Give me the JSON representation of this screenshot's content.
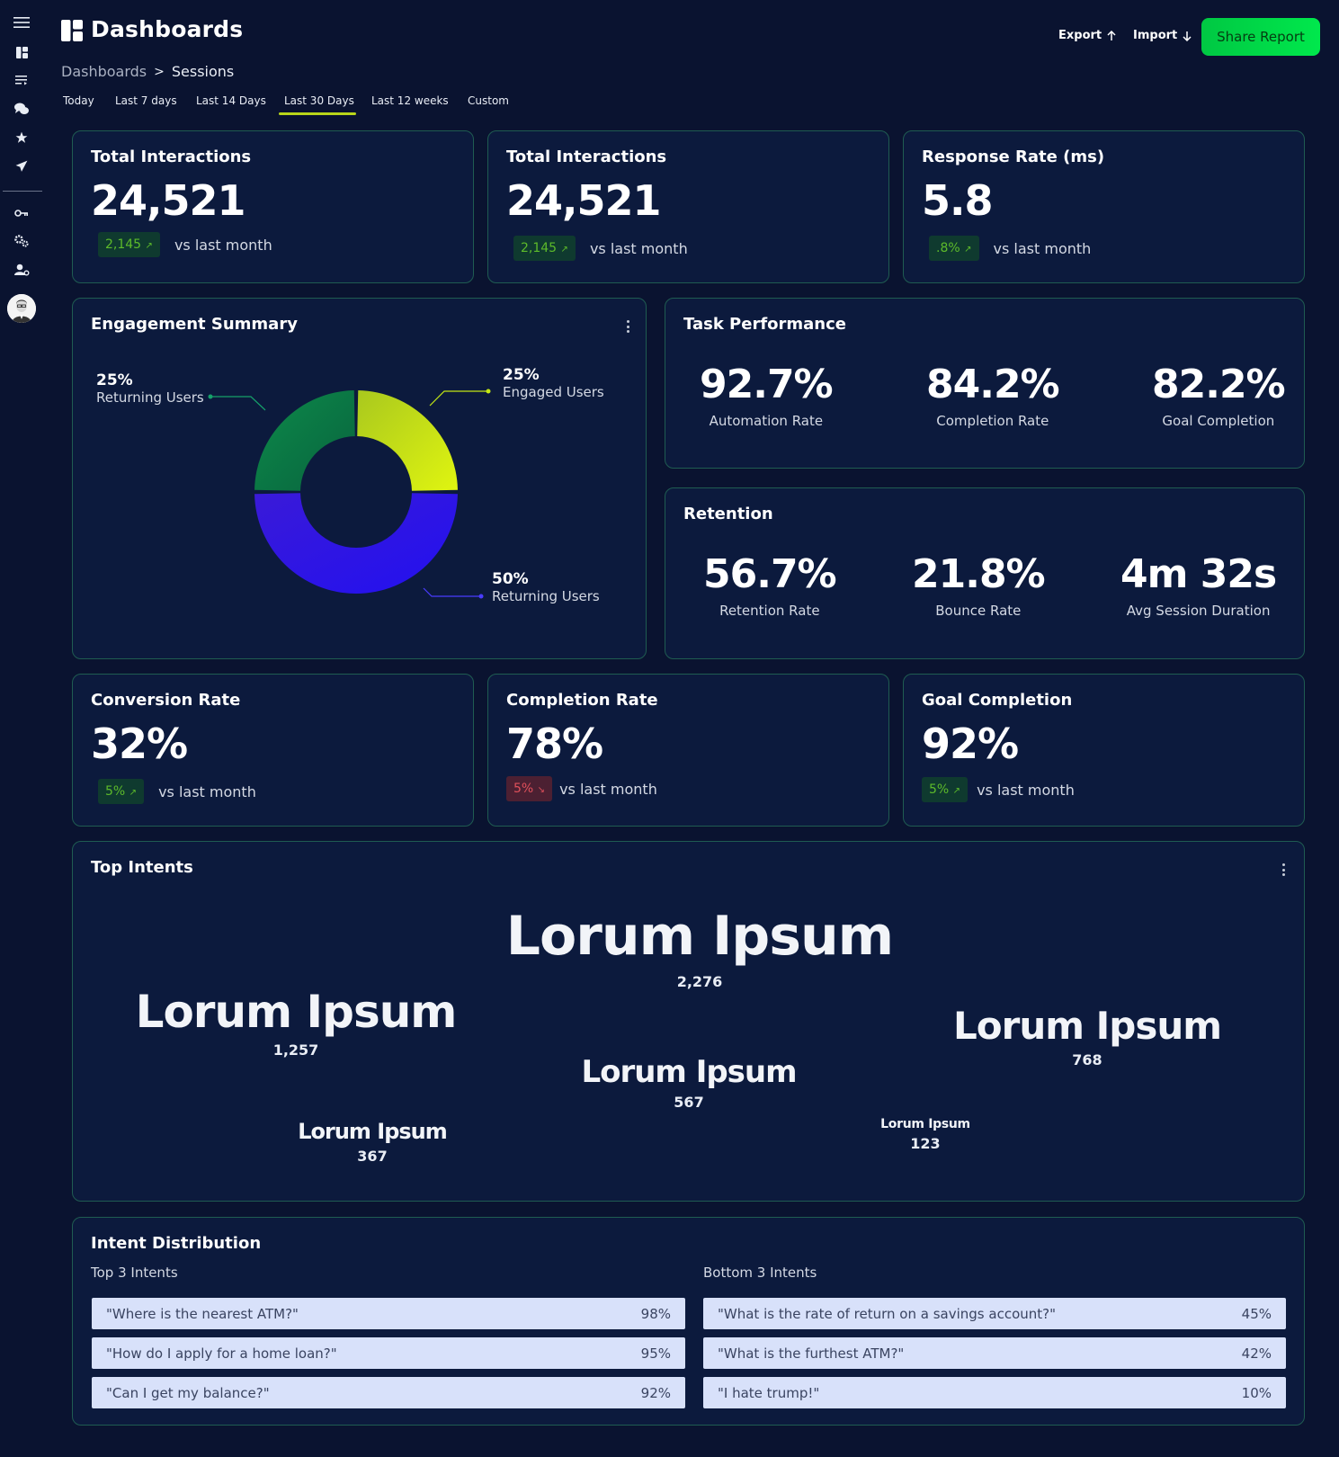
{
  "header": {
    "title": "Dashboards",
    "breadcrumb": [
      "Dashboards",
      "Sessions"
    ],
    "breadcrumb_sep": ">",
    "export_label": "Export",
    "import_label": "Import",
    "share_label": "Share Report"
  },
  "tabs": [
    "Today",
    "Last 7 days",
    "Last 14 Days",
    "Last 30 Days",
    "Last 12 weeks",
    "Custom"
  ],
  "active_tab": "Last 30 Days",
  "kpis_top": [
    {
      "title": "Total Interactions",
      "value": "24,521",
      "delta": "2,145",
      "trend": "up",
      "caption": "vs last month"
    },
    {
      "title": "Total Interactions",
      "value": "24,521",
      "delta": "2,145",
      "trend": "up",
      "caption": "vs last month"
    },
    {
      "title": "Response Rate (ms)",
      "value": "5.8",
      "delta": ".8%",
      "trend": "up",
      "caption": "vs last month"
    }
  ],
  "engagement": {
    "title": "Engagement Summary",
    "slices": [
      {
        "pct": "25%",
        "label": "Returning Users",
        "value": 25,
        "color": "#0b7a45"
      },
      {
        "pct": "25%",
        "label": "Engaged Users",
        "value": 25,
        "color": "#c4e814"
      },
      {
        "pct": "50%",
        "label": "Returning Users",
        "value": 50,
        "color": "#2a10e0"
      }
    ]
  },
  "task_performance": {
    "title": "Task Performance",
    "metrics": [
      {
        "value": "92.7%",
        "label": "Automation Rate"
      },
      {
        "value": "84.2%",
        "label": "Completion Rate"
      },
      {
        "value": "82.2%",
        "label": "Goal Completion"
      }
    ]
  },
  "retention": {
    "title": "Retention",
    "metrics": [
      {
        "value": "56.7%",
        "label": "Retention Rate"
      },
      {
        "value": "21.8%",
        "label": "Bounce Rate"
      },
      {
        "value": "4m 32s",
        "label": "Avg Session Duration"
      }
    ]
  },
  "kpis_bottom": [
    {
      "title": "Conversion Rate",
      "value": "32%",
      "delta": "5%",
      "trend": "up",
      "caption": "vs last month"
    },
    {
      "title": "Completion Rate",
      "value": "78%",
      "delta": "5%",
      "trend": "down",
      "caption": "vs last month"
    },
    {
      "title": "Goal Completion",
      "value": "92%",
      "delta": "5%",
      "trend": "up",
      "caption": "vs last month"
    }
  ],
  "top_intents": {
    "title": "Top Intents",
    "items": [
      {
        "word": "Lorum Ipsum",
        "count": "2,276"
      },
      {
        "word": "Lorum Ipsum",
        "count": "1,257"
      },
      {
        "word": "Lorum Ipsum",
        "count": "768"
      },
      {
        "word": "Lorum Ipsum",
        "count": "567"
      },
      {
        "word": "Lorum Ipsum",
        "count": "367"
      },
      {
        "word": "Lorum Ipsum",
        "count": "123"
      }
    ]
  },
  "intent_distribution": {
    "title": "Intent Distribution",
    "top_label": "Top 3 Intents",
    "bottom_label": "Bottom 3 Intents",
    "top": [
      {
        "text": "\"Where is the nearest ATM?\"",
        "pct": "98%"
      },
      {
        "text": "\"How do I apply for a home loan?\"",
        "pct": "95%"
      },
      {
        "text": "\"Can I get my balance?\"",
        "pct": "92%"
      }
    ],
    "bottom": [
      {
        "text": "\"What is the rate of return on a savings account?\"",
        "pct": "45%"
      },
      {
        "text": "\"What is the furthest ATM?\"",
        "pct": "42%"
      },
      {
        "text": "\"I hate trump!\"",
        "pct": "10%"
      }
    ]
  },
  "icons": {
    "sidebar": [
      "menu-icon",
      "dashboard-icon",
      "list-icon",
      "chat-icon",
      "star-icon",
      "send-icon",
      "key-icon",
      "settings-icon",
      "user-settings-icon"
    ]
  }
}
